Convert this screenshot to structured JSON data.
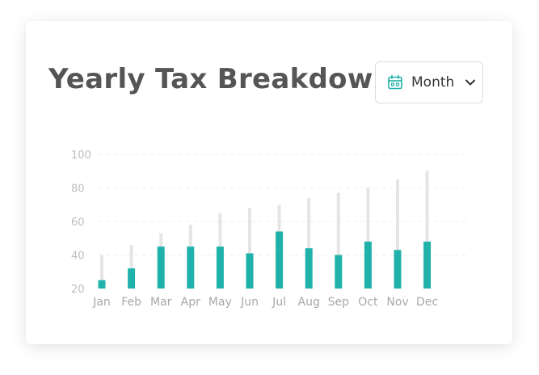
{
  "header": {
    "title": "Yearly Tax Breakdown"
  },
  "dropdown": {
    "icon": "calendar-icon",
    "selected": "Month",
    "chevron": "chevron-down-icon"
  },
  "colors": {
    "accent": "#20b2aa",
    "background_bar": "#e5e5e5",
    "title": "#555555"
  },
  "chart_data": {
    "type": "bar",
    "categories": [
      "Jan",
      "Feb",
      "Mar",
      "Apr",
      "May",
      "Jun",
      "Jul",
      "Aug",
      "Sep",
      "Oct",
      "Nov",
      "Dec"
    ],
    "series": [
      {
        "values": [
          40,
          46,
          53,
          58,
          65,
          68,
          70,
          74,
          77,
          80,
          85,
          90
        ]
      },
      {
        "values": [
          25,
          32,
          45,
          45,
          45,
          41,
          54,
          44,
          40,
          48,
          43,
          48
        ]
      }
    ],
    "yticks": [
      20,
      40,
      60,
      80,
      100
    ],
    "ylim": [
      20,
      100
    ],
    "grid": true
  }
}
